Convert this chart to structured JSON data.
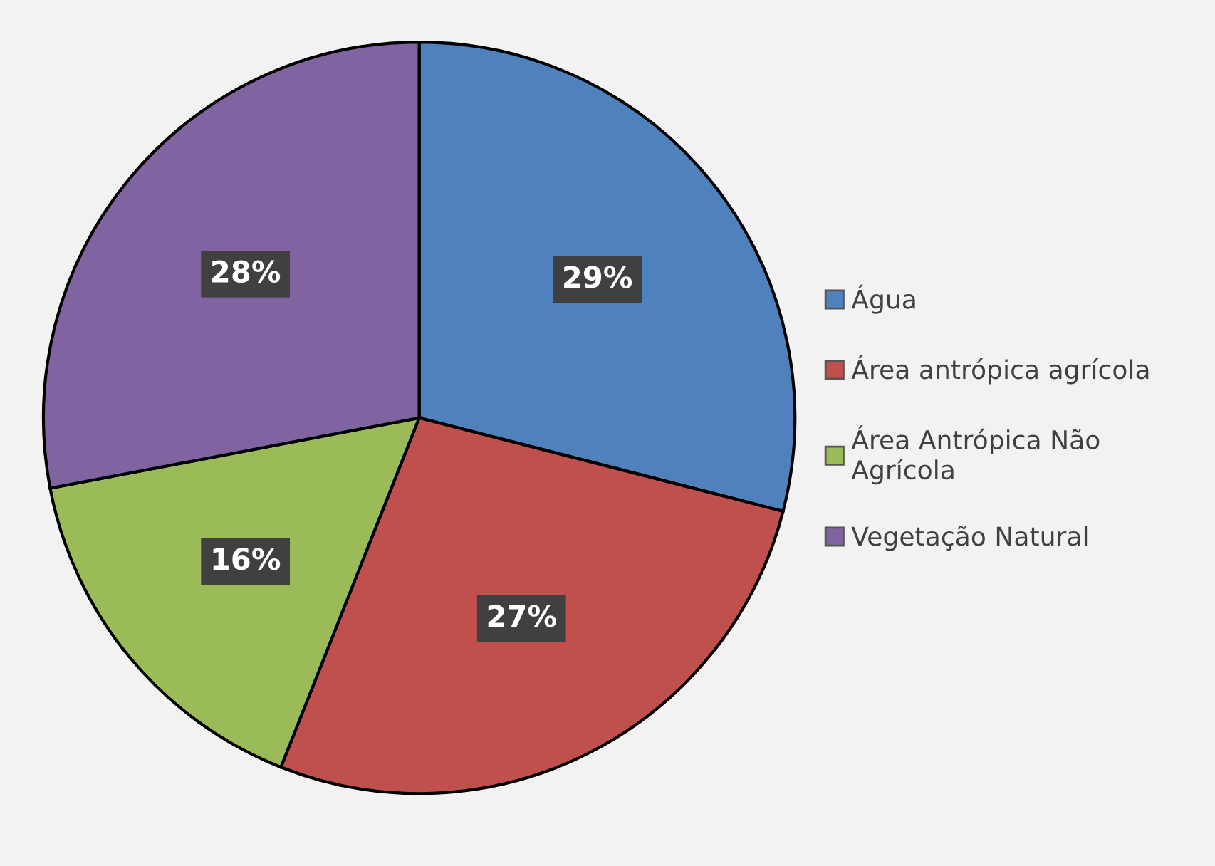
{
  "chart_data": {
    "type": "pie",
    "categories": [
      "Água",
      "Área antrópica agrícola",
      "Área Antrópica Não\nAgrícola",
      "Vegetação Natural"
    ],
    "values": [
      29,
      27,
      16,
      28
    ],
    "colors": [
      "#4f81bd",
      "#c0504d",
      "#9bbb59",
      "#8064a2"
    ],
    "value_labels": [
      "29%",
      "27%",
      "16%",
      "28%"
    ],
    "legend": "right"
  }
}
